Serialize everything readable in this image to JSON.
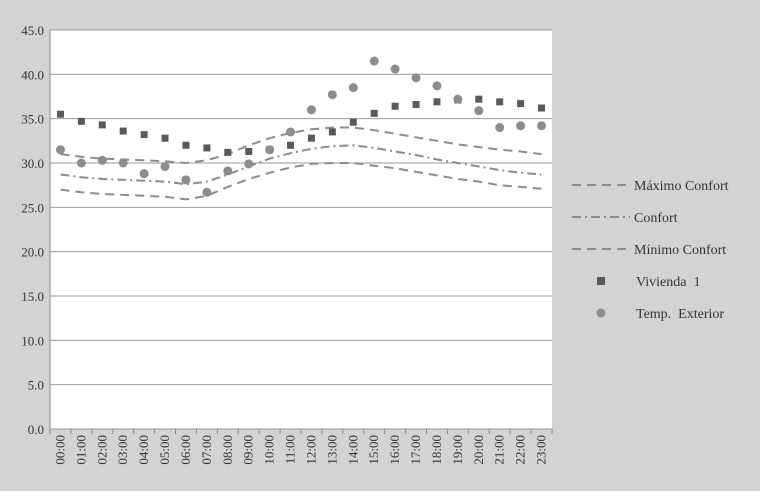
{
  "chart_data": {
    "type": "line",
    "title": "",
    "xlabel": "",
    "ylabel": "",
    "ylim": [
      0,
      45
    ],
    "yticks": [
      "0.0",
      "5.0",
      "10.0",
      "15.0",
      "20.0",
      "25.0",
      "30.0",
      "35.0",
      "40.0",
      "45.0"
    ],
    "categories": [
      "00:00",
      "01:00",
      "02:00",
      "03:00",
      "04:00",
      "05:00",
      "06:00",
      "07:00",
      "08:00",
      "09:00",
      "10:00",
      "11:00",
      "12:00",
      "13:00",
      "14:00",
      "15:00",
      "16:00",
      "17:00",
      "18:00",
      "19:00",
      "20:00",
      "21:00",
      "22:00",
      "23:00"
    ],
    "grid": true,
    "legend_position": "right",
    "series": [
      {
        "name": "Máximo Confort",
        "style": "dashed",
        "color": "#8c8c8c",
        "values": [
          31.0,
          30.7,
          30.5,
          30.4,
          30.3,
          30.2,
          30.0,
          30.3,
          31.0,
          32.0,
          32.8,
          33.4,
          33.8,
          34.0,
          34.0,
          33.7,
          33.3,
          32.9,
          32.5,
          32.1,
          31.8,
          31.5,
          31.3,
          31.0
        ]
      },
      {
        "name": "Confort",
        "style": "dashdot",
        "color": "#8c8c8c",
        "values": [
          28.7,
          28.4,
          28.2,
          28.1,
          28.0,
          27.9,
          27.6,
          27.9,
          28.7,
          29.6,
          30.5,
          31.1,
          31.6,
          31.9,
          32.0,
          31.7,
          31.3,
          30.9,
          30.4,
          30.0,
          29.6,
          29.2,
          28.9,
          28.7
        ]
      },
      {
        "name": "Mínimo Confort",
        "style": "dashed",
        "color": "#8c8c8c",
        "values": [
          27.0,
          26.7,
          26.5,
          26.4,
          26.3,
          26.2,
          25.9,
          26.3,
          27.3,
          28.2,
          28.9,
          29.5,
          29.9,
          30.0,
          30.0,
          29.7,
          29.4,
          29.0,
          28.6,
          28.2,
          27.9,
          27.5,
          27.3,
          27.1
        ]
      },
      {
        "name": "Vivienda  1",
        "style": "square",
        "color": "#595959",
        "values": [
          35.5,
          34.7,
          34.3,
          33.6,
          33.2,
          32.8,
          32.0,
          31.7,
          31.2,
          31.3,
          31.5,
          32.0,
          32.8,
          33.5,
          34.6,
          35.6,
          36.4,
          36.6,
          36.9,
          37.1,
          37.2,
          36.9,
          36.7,
          36.2
        ]
      },
      {
        "name": "Temp.  Exterior",
        "style": "circle",
        "color": "#8c8c8c",
        "values": [
          31.5,
          30.0,
          30.3,
          30.0,
          28.8,
          29.6,
          28.1,
          26.7,
          29.1,
          29.9,
          31.5,
          33.5,
          36.0,
          37.7,
          38.5,
          41.5,
          40.6,
          39.6,
          38.7,
          37.2,
          35.9,
          34.0,
          34.2,
          34.2
        ]
      }
    ]
  }
}
